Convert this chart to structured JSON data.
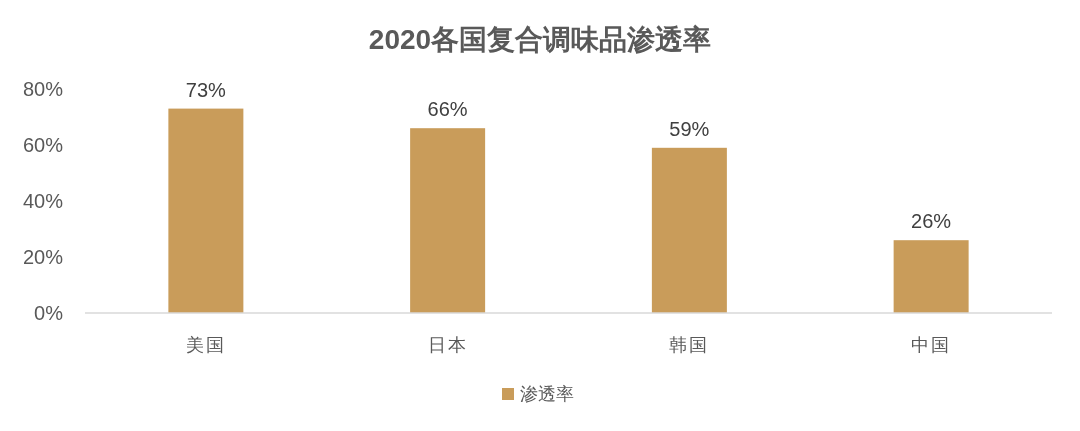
{
  "chart_data": {
    "type": "bar",
    "title": "2020各国复合调味品渗透率",
    "categories": [
      "美国",
      "日本",
      "韩国",
      "中国"
    ],
    "series": [
      {
        "name": "渗透率",
        "color": "#c99c5a",
        "values": [
          73,
          66,
          59,
          26
        ],
        "value_labels": [
          "73%",
          "66%",
          "59%",
          "26%"
        ]
      }
    ],
    "ylim": [
      0,
      80
    ],
    "yticks": [
      {
        "value": 0,
        "label": "0%"
      },
      {
        "value": 20,
        "label": "20%"
      },
      {
        "value": 40,
        "label": "40%"
      },
      {
        "value": 60,
        "label": "60%"
      },
      {
        "value": 80,
        "label": "80%"
      }
    ],
    "legend": "bottom"
  }
}
